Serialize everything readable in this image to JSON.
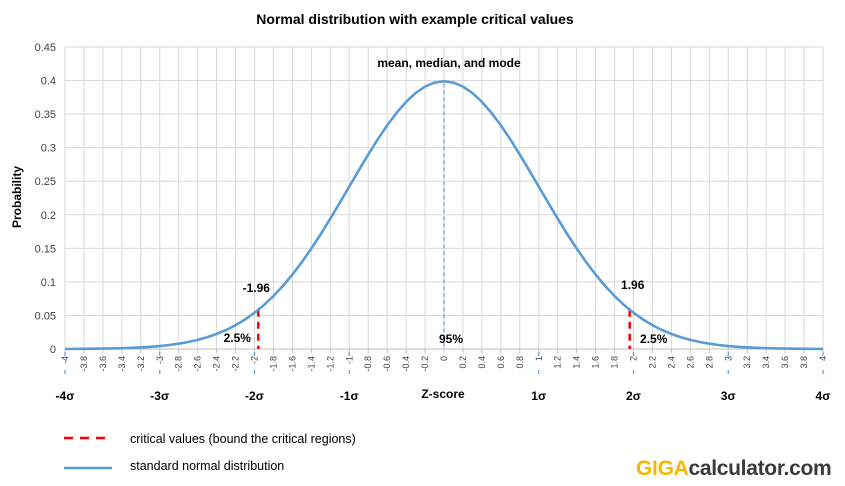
{
  "chart_data": {
    "type": "line",
    "title": "Normal distribution with example critical values",
    "ylabel": "Probability",
    "xlabel": "Z-score",
    "xlim": [
      -4,
      4
    ],
    "ylim": [
      0,
      0.45
    ],
    "yticks": [
      "0",
      "0.05",
      "0.1",
      "0.15",
      "0.2",
      "0.25",
      "0.3",
      "0.35",
      "0.4",
      "0.45"
    ],
    "xticks": [
      "-4",
      "-3.8",
      "-3.6",
      "-3.4",
      "-3.2",
      "-3",
      "-2.8",
      "-2.6",
      "-2.4",
      "-2.2",
      "-2",
      "-1.8",
      "-1.6",
      "-1.4",
      "-1.2",
      "-1",
      "-0.8",
      "-0.6",
      "-0.4",
      "-0.2",
      "0",
      "0.2",
      "0.4",
      "0.6",
      "0.8",
      "1",
      "1.2",
      "1.4",
      "1.6",
      "1.8",
      "2",
      "2.2",
      "2.4",
      "2.6",
      "2.8",
      "3",
      "3.2",
      "3.4",
      "3.6",
      "3.8",
      "4"
    ],
    "sigma_labels": [
      {
        "x": -4,
        "label": "-4σ"
      },
      {
        "x": -3,
        "label": "-3σ"
      },
      {
        "x": -2,
        "label": "-2σ"
      },
      {
        "x": -1,
        "label": "-1σ"
      },
      {
        "x": 1,
        "label": "1σ"
      },
      {
        "x": 2,
        "label": "2σ"
      },
      {
        "x": 3,
        "label": "3σ"
      },
      {
        "x": 4,
        "label": "4σ"
      }
    ],
    "grid": true,
    "series": [
      {
        "name": "standard normal distribution",
        "color": "#5b9bd5",
        "function": "standard-normal-pdf",
        "x_step": 0.1
      }
    ],
    "critical_values": [
      {
        "x": -1.96,
        "label": "-1.96",
        "tail": "2.5%"
      },
      {
        "x": 1.96,
        "label": "1.96",
        "tail": "2.5%"
      }
    ],
    "critical_color": "#ff0000",
    "annotations": [
      {
        "x": 0,
        "text": "mean, median, and mode"
      },
      {
        "x": 0,
        "text": "95%"
      }
    ],
    "legend": {
      "placement": "bottom-left",
      "entries": [
        {
          "text": "critical values (bound the critical regions)",
          "style": "dashed",
          "color": "#ff0000"
        },
        {
          "text": "standard normal distribution",
          "style": "solid",
          "color": "#5b9bd5"
        }
      ]
    }
  },
  "brand": {
    "part1": "GIGA",
    "part2": "calculator.com"
  }
}
